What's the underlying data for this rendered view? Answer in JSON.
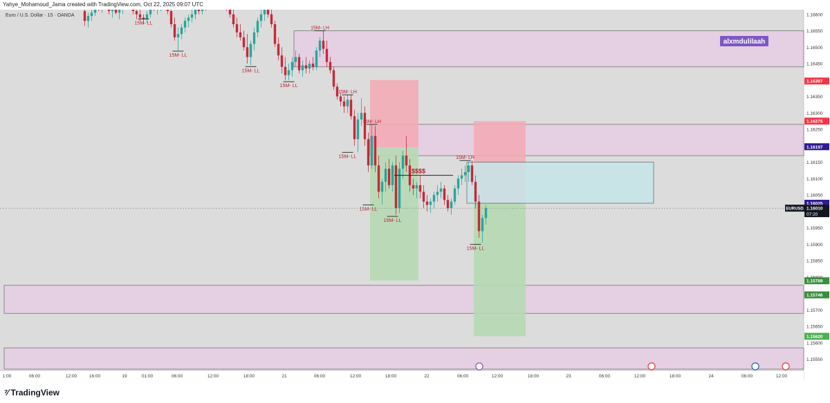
{
  "header": {
    "credit": "Yahye_Mohamoud_Jama created with TradingView.com, Oct 22, 2025 09:07 UTC",
    "symbol_title": "Euro / U.S. Dollar · 15 · OANDA"
  },
  "footer": {
    "brand": "TradingView"
  },
  "colors": {
    "background": "#dcdcdc",
    "zone_purple": "#e4cfe3",
    "stop_red": "#f4a9b4",
    "target_green": "#b6d9b2",
    "entry_cyan": "#c6e6ea",
    "candle_up": "#26a69a",
    "candle_down": "#c62838",
    "label_red": "#b71c2c",
    "badge_purple": "#7e57c2"
  },
  "chart_data": {
    "type": "candlestick",
    "symbol": "EURUSD",
    "y_range": [
      1.1552,
      1.1661
    ],
    "y_ticks": [
      "1.16600",
      "1.16550",
      "1.16500",
      "1.16450",
      "1.16350",
      "1.16300",
      "1.16250",
      "1.16150",
      "1.16100",
      "1.16050",
      "1.15950",
      "1.15900",
      "1.15850",
      "1.15800",
      "1.15700",
      "1.15650",
      "1.15600",
      "1.15550"
    ],
    "x_ticks": [
      "1:00",
      "06:00",
      "12:00",
      "16:00",
      "19",
      "01:00",
      "06:00",
      "12:00",
      "18:00",
      "21",
      "06:00",
      "12:00",
      "18:00",
      "22",
      "06:00",
      "12:00",
      "18:00",
      "23",
      "06:00",
      "12:00",
      "18:00",
      "24",
      "06:00",
      "12:00"
    ],
    "price_badges": [
      {
        "value": "1.16397",
        "color": "#f23645"
      },
      {
        "value": "1.16275",
        "color": "#f23645"
      },
      {
        "value": "1.16197",
        "color": "#311b92"
      },
      {
        "value": "1.16025",
        "color": "#311b92"
      },
      {
        "value": "1.15789",
        "color": "#388e3c"
      },
      {
        "value": "1.15746",
        "color": "#388e3c"
      },
      {
        "value": "1.15620",
        "color": "#4caf50"
      }
    ],
    "current_price": {
      "symbol": "EURUSD",
      "value": "1.16010",
      "countdown": "07:20"
    },
    "text_note": "alxmdulilaah",
    "liquidity_label": "$$$$",
    "swing_labels": [
      {
        "text": "15M- LL",
        "price": 1.16586,
        "bar": 17
      },
      {
        "text": "15M- LL",
        "price": 1.16488,
        "bar": 27
      },
      {
        "text": "15M- LL",
        "price": 1.16441,
        "bar": 48
      },
      {
        "text": "15M- LH",
        "price": 1.1655,
        "bar": 68
      },
      {
        "text": "15M- LL",
        "price": 1.16395,
        "bar": 59
      },
      {
        "text": "15M- LH",
        "price": 1.16355,
        "bar": 76
      },
      {
        "text": "15M- LL",
        "price": 1.1618,
        "bar": 76
      },
      {
        "text": "15M- LH",
        "price": 1.16265,
        "bar": 83
      },
      {
        "text": "15M- LL",
        "price": 1.1602,
        "bar": 82
      },
      {
        "text": "15M- LL",
        "price": 1.15985,
        "bar": 89
      },
      {
        "text": "15M- LH",
        "price": 1.16155,
        "bar": 110
      },
      {
        "text": "15M- LL",
        "price": 1.159,
        "bar": 113
      }
    ],
    "zones": [
      {
        "kind": "purple",
        "y1": 1.1655,
        "y2": 1.1644,
        "x_start_bar": 61,
        "x_end": "right"
      },
      {
        "kind": "purple",
        "y1": 1.16265,
        "y2": 1.1617,
        "x_start_bar": 83,
        "x_end": "right"
      },
      {
        "kind": "purple",
        "y1": 1.15775,
        "y2": 1.1569,
        "x_start_bar": 0,
        "x_end": "right"
      },
      {
        "kind": "purple",
        "y1": 1.15585,
        "y2": 1.1552,
        "x_start_bar": 0,
        "x_end": "right"
      }
    ],
    "positions": [
      {
        "side": "short",
        "entry": 1.16195,
        "stop": 1.164,
        "target": 1.1579,
        "bar_start": 83,
        "bar_end": 97
      },
      {
        "side": "short",
        "entry": 1.16025,
        "stop": 1.16275,
        "target": 1.1562,
        "bar_start": 113,
        "bar_end": 128
      }
    ],
    "entry_box": {
      "y1": 1.1615,
      "y2": 1.16025,
      "bar_start": 111,
      "bar_end": 165
    },
    "candles": [
      [
        1.1661,
        1.16625,
        1.16565,
        1.1658
      ],
      [
        1.1658,
        1.16605,
        1.1656,
        1.16595
      ],
      [
        1.16595,
        1.1662,
        1.1658,
        1.16605
      ],
      [
        1.16605,
        1.1664,
        1.16595,
        1.1663
      ],
      [
        1.1663,
        1.16645,
        1.1661,
        1.1662
      ],
      [
        1.1662,
        1.1665,
        1.16605,
        1.1664
      ],
      [
        1.1664,
        1.1666,
        1.1662,
        1.1663
      ],
      [
        1.1663,
        1.1665,
        1.166,
        1.1661
      ],
      [
        1.1661,
        1.1663,
        1.1659,
        1.1662
      ],
      [
        1.1662,
        1.1664,
        1.166,
        1.16605
      ],
      [
        1.16605,
        1.16625,
        1.16585,
        1.16615
      ],
      [
        1.16615,
        1.1664,
        1.166,
        1.1663
      ],
      [
        1.1663,
        1.1666,
        1.1662,
        1.1665
      ],
      [
        1.1665,
        1.1667,
        1.16625,
        1.1664
      ],
      [
        1.1664,
        1.1665,
        1.166,
        1.1661
      ],
      [
        1.1661,
        1.1663,
        1.16585,
        1.166
      ],
      [
        1.166,
        1.1662,
        1.1658,
        1.1659
      ],
      [
        1.1659,
        1.166,
        1.1657,
        1.16585
      ],
      [
        1.16585,
        1.1661,
        1.16575,
        1.166
      ],
      [
        1.166,
        1.1664,
        1.1659,
        1.1663
      ],
      [
        1.1663,
        1.1665,
        1.1661,
        1.1662
      ],
      [
        1.1662,
        1.1664,
        1.166,
        1.16625
      ],
      [
        1.16625,
        1.1665,
        1.1661,
        1.1664
      ],
      [
        1.1664,
        1.1666,
        1.1663,
        1.1665
      ],
      [
        1.1665,
        1.1666,
        1.166,
        1.1661
      ],
      [
        1.1661,
        1.1662,
        1.1656,
        1.1657
      ],
      [
        1.1657,
        1.1659,
        1.1652,
        1.1653
      ],
      [
        1.1653,
        1.1656,
        1.1649,
        1.1654
      ],
      [
        1.1654,
        1.1657,
        1.16525,
        1.1656
      ],
      [
        1.1656,
        1.1659,
        1.16545,
        1.1658
      ],
      [
        1.1658,
        1.166,
        1.1656,
        1.1659
      ],
      [
        1.1659,
        1.1662,
        1.16575,
        1.166
      ],
      [
        1.166,
        1.1663,
        1.16585,
        1.1662
      ],
      [
        1.1662,
        1.1664,
        1.166,
        1.1661
      ],
      [
        1.1661,
        1.1664,
        1.166,
        1.1663
      ],
      [
        1.1663,
        1.1665,
        1.1661,
        1.1664
      ],
      [
        1.1664,
        1.1666,
        1.1663,
        1.1665
      ],
      [
        1.1665,
        1.1666,
        1.1663,
        1.16645
      ],
      [
        1.16645,
        1.1666,
        1.16625,
        1.1665
      ],
      [
        1.1665,
        1.1666,
        1.1663,
        1.1664
      ],
      [
        1.1664,
        1.16655,
        1.1662,
        1.1663
      ],
      [
        1.1663,
        1.1665,
        1.1661,
        1.1662
      ],
      [
        1.1662,
        1.1664,
        1.1659,
        1.166
      ],
      [
        1.166,
        1.1662,
        1.1656,
        1.1657
      ],
      [
        1.1657,
        1.1659,
        1.1653,
        1.16545
      ],
      [
        1.16545,
        1.1657,
        1.1652,
        1.1653
      ],
      [
        1.1653,
        1.1655,
        1.1649,
        1.165
      ],
      [
        1.165,
        1.1654,
        1.1645,
        1.1647
      ],
      [
        1.1647,
        1.1652,
        1.16445,
        1.1651
      ],
      [
        1.1651,
        1.1656,
        1.1649,
        1.16545
      ],
      [
        1.16545,
        1.1659,
        1.1653,
        1.1658
      ],
      [
        1.1658,
        1.1662,
        1.1656,
        1.166
      ],
      [
        1.166,
        1.1664,
        1.1658,
        1.1662
      ],
      [
        1.1662,
        1.1665,
        1.1659,
        1.166
      ],
      [
        1.166,
        1.1662,
        1.1656,
        1.1657
      ],
      [
        1.1657,
        1.1658,
        1.165,
        1.1651
      ],
      [
        1.1651,
        1.1653,
        1.1646,
        1.16475
      ],
      [
        1.16475,
        1.165,
        1.1642,
        1.1644
      ],
      [
        1.1644,
        1.1647,
        1.164,
        1.16415
      ],
      [
        1.16415,
        1.1645,
        1.164,
        1.1643
      ],
      [
        1.1643,
        1.1647,
        1.1641,
        1.16455
      ],
      [
        1.16455,
        1.1649,
        1.1644,
        1.1647
      ],
      [
        1.1647,
        1.1648,
        1.1642,
        1.1643
      ],
      [
        1.1643,
        1.1646,
        1.1641,
        1.16445
      ],
      [
        1.16445,
        1.1647,
        1.1642,
        1.16435
      ],
      [
        1.16435,
        1.1646,
        1.1642,
        1.1645
      ],
      [
        1.1645,
        1.1647,
        1.1643,
        1.1644
      ],
      [
        1.1644,
        1.165,
        1.1643,
        1.1649
      ],
      [
        1.1649,
        1.1653,
        1.1647,
        1.1652
      ],
      [
        1.1652,
        1.1655,
        1.1648,
        1.16495
      ],
      [
        1.16495,
        1.1652,
        1.1644,
        1.16455
      ],
      [
        1.16455,
        1.1647,
        1.1642,
        1.1643
      ],
      [
        1.1643,
        1.1644,
        1.1637,
        1.1638
      ],
      [
        1.1638,
        1.1639,
        1.1634,
        1.1635
      ],
      [
        1.1635,
        1.1636,
        1.1632,
        1.16335
      ],
      [
        1.16335,
        1.1635,
        1.163,
        1.1632
      ],
      [
        1.1632,
        1.16355,
        1.163,
        1.1634
      ],
      [
        1.1634,
        1.16355,
        1.1628,
        1.1629
      ],
      [
        1.1629,
        1.1631,
        1.162,
        1.1622
      ],
      [
        1.1622,
        1.163,
        1.1618,
        1.1628
      ],
      [
        1.1628,
        1.16345,
        1.1626,
        1.163
      ],
      [
        1.163,
        1.1632,
        1.162,
        1.1622
      ],
      [
        1.1622,
        1.1624,
        1.1612,
        1.1614
      ],
      [
        1.1614,
        1.16265,
        1.1613,
        1.1623
      ],
      [
        1.1623,
        1.1626,
        1.1612,
        1.1614
      ],
      [
        1.1614,
        1.1617,
        1.1604,
        1.1606
      ],
      [
        1.1606,
        1.161,
        1.1602,
        1.1609
      ],
      [
        1.1609,
        1.1615,
        1.1606,
        1.1613
      ],
      [
        1.1613,
        1.1616,
        1.1607,
        1.1608
      ],
      [
        1.1608,
        1.1615,
        1.1606,
        1.1614
      ],
      [
        1.1614,
        1.1617,
        1.1599,
        1.1601
      ],
      [
        1.1601,
        1.1615,
        1.15995,
        1.1613
      ],
      [
        1.1613,
        1.16185,
        1.161,
        1.1617
      ],
      [
        1.1617,
        1.1623,
        1.1612,
        1.1614
      ],
      [
        1.1614,
        1.1616,
        1.1606,
        1.1608
      ],
      [
        1.1608,
        1.161,
        1.1605,
        1.1607
      ],
      [
        1.1607,
        1.1609,
        1.1604,
        1.1608
      ],
      [
        1.1608,
        1.1611,
        1.1604,
        1.1606
      ],
      [
        1.1606,
        1.1608,
        1.1601,
        1.1603
      ],
      [
        1.1603,
        1.1605,
        1.16,
        1.1602
      ],
      [
        1.1602,
        1.1604,
        1.15995,
        1.1603
      ],
      [
        1.1603,
        1.1606,
        1.1601,
        1.1605
      ],
      [
        1.1605,
        1.1608,
        1.1603,
        1.1606
      ],
      [
        1.1606,
        1.1609,
        1.1604,
        1.1607
      ],
      [
        1.1607,
        1.1608,
        1.1602,
        1.16035
      ],
      [
        1.16035,
        1.1605,
        1.16,
        1.1601
      ],
      [
        1.1601,
        1.1604,
        1.1599,
        1.1603
      ],
      [
        1.1603,
        1.1608,
        1.1602,
        1.1607
      ],
      [
        1.1607,
        1.1611,
        1.1605,
        1.161
      ],
      [
        1.161,
        1.1613,
        1.1608,
        1.1611
      ],
      [
        1.1611,
        1.1614,
        1.1609,
        1.1612
      ],
      [
        1.1612,
        1.1615,
        1.1609,
        1.1614
      ],
      [
        1.1614,
        1.16155,
        1.1608,
        1.1609
      ],
      [
        1.1609,
        1.1611,
        1.1601,
        1.1603
      ],
      [
        1.1603,
        1.1605,
        1.1592,
        1.1594
      ],
      [
        1.1594,
        1.1599,
        1.15905,
        1.1598
      ],
      [
        1.1598,
        1.1602,
        1.1596,
        1.1601
      ]
    ]
  }
}
